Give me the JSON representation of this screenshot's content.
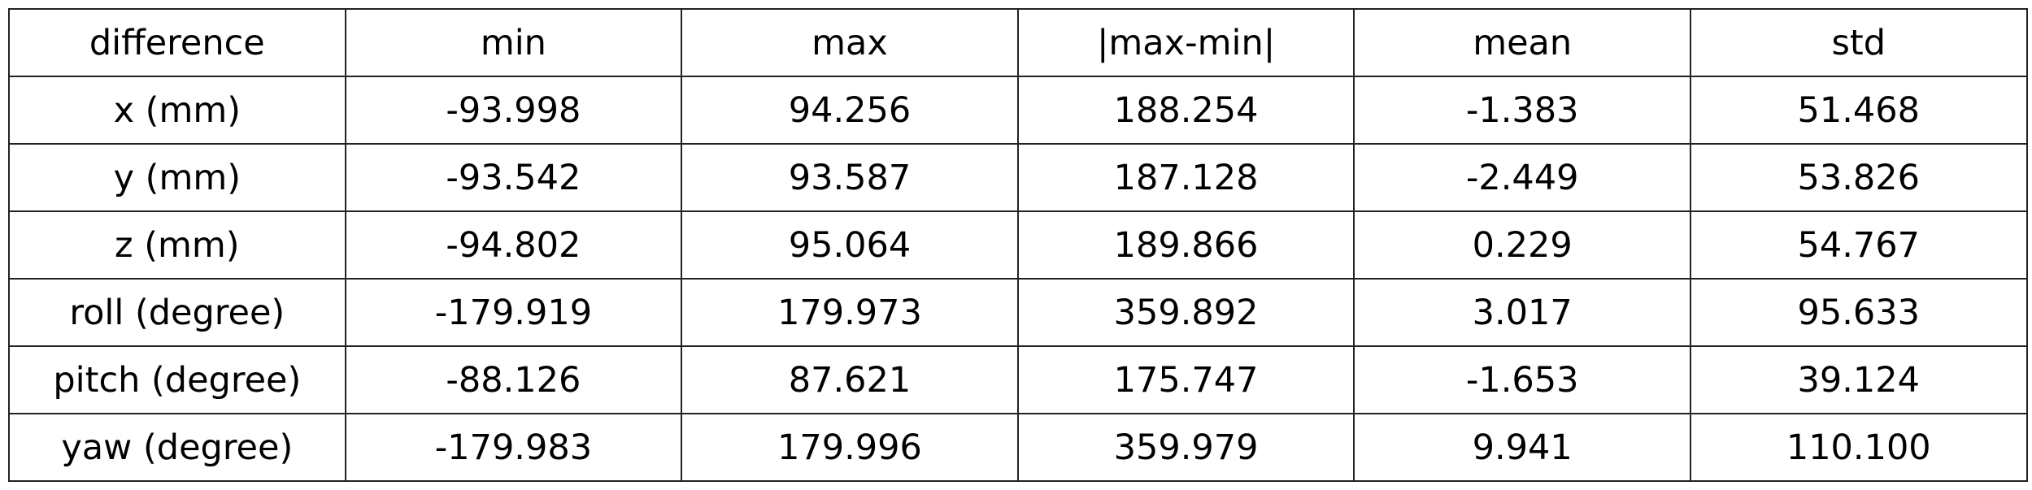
{
  "table": {
    "headers": [
      "difference",
      "min",
      "max",
      "|max-min|",
      "mean",
      "std"
    ],
    "rows": [
      [
        "x (mm)",
        "-93.998",
        "94.256",
        "188.254",
        "-1.383",
        "51.468"
      ],
      [
        "y (mm)",
        "-93.542",
        "93.587",
        "187.128",
        "-2.449",
        "53.826"
      ],
      [
        "z (mm)",
        "-94.802",
        "95.064",
        "189.866",
        "0.229",
        "54.767"
      ],
      [
        "roll (degree)",
        "-179.919",
        "179.973",
        "359.892",
        "3.017",
        "95.633"
      ],
      [
        "pitch (degree)",
        "-88.126",
        "87.621",
        "175.747",
        "-1.653",
        "39.124"
      ],
      [
        "yaw (degree)",
        "-179.983",
        "179.996",
        "359.979",
        "9.941",
        "110.100"
      ]
    ]
  }
}
